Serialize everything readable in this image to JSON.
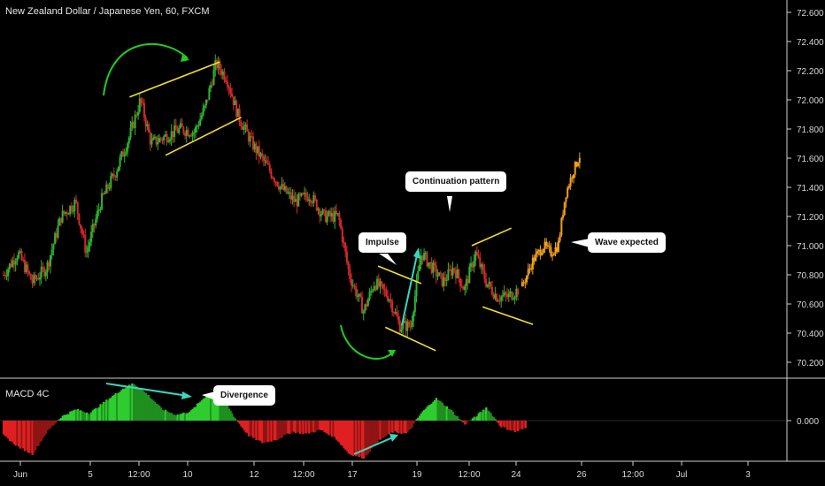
{
  "header": {
    "title": "New Zealand Dollar / Japanese Yen, 60, FXCM"
  },
  "indicator": {
    "title": "MACD 4C"
  },
  "callouts": {
    "continuation": "Continuation pattern",
    "impulse": "Impulse",
    "wave": "Wave expected",
    "divergence": "Divergence"
  },
  "colors": {
    "background": "#000000",
    "up_candle": "#2fb52f",
    "down_candle": "#d62a2a",
    "projection": "#f0a020",
    "trendline": "#f5e02a",
    "arc": "#22cc22",
    "divergence_arrow": "#3ad6c0",
    "impulse_arrow": "#3ad6c0",
    "macd_up": "#22aa22",
    "macd_down": "#cc1f1f"
  },
  "chart_data": [
    {
      "type": "candlestick",
      "title": "New Zealand Dollar / Japanese Yen, 60, FXCM",
      "ylim": [
        70.1,
        72.7
      ],
      "yticks": [
        "72.600",
        "72.400",
        "72.200",
        "72.000",
        "71.800",
        "71.600",
        "71.400",
        "71.200",
        "71.000",
        "70.800",
        "70.600",
        "70.400",
        "70.200"
      ],
      "xticks": [
        "Jun",
        "5",
        "12:00",
        "10",
        "12",
        "12:00",
        "17",
        "19",
        "12:00",
        "24",
        "26",
        "12:00",
        "Jul",
        "3"
      ],
      "price_path": [
        [
          0,
          70.8
        ],
        [
          4,
          70.95
        ],
        [
          8,
          70.75
        ],
        [
          12,
          70.85
        ],
        [
          16,
          71.2
        ],
        [
          20,
          71.3
        ],
        [
          23,
          70.95
        ],
        [
          27,
          71.3
        ],
        [
          31,
          71.5
        ],
        [
          35,
          71.75
        ],
        [
          38,
          72.0
        ],
        [
          41,
          71.7
        ],
        [
          45,
          71.75
        ],
        [
          49,
          71.8
        ],
        [
          53,
          71.78
        ],
        [
          56,
          71.95
        ],
        [
          59,
          72.25
        ],
        [
          62,
          72.15
        ],
        [
          65,
          71.9
        ],
        [
          69,
          71.7
        ],
        [
          73,
          71.55
        ],
        [
          77,
          71.4
        ],
        [
          81,
          71.3
        ],
        [
          85,
          71.35
        ],
        [
          89,
          71.2
        ],
        [
          93,
          71.2
        ],
        [
          96,
          70.8
        ],
        [
          100,
          70.55
        ],
        [
          103,
          70.75
        ],
        [
          107,
          70.65
        ],
        [
          110,
          70.45
        ],
        [
          113,
          70.45
        ],
        [
          116,
          70.95
        ],
        [
          119,
          70.85
        ],
        [
          122,
          70.75
        ],
        [
          125,
          70.85
        ],
        [
          128,
          70.7
        ],
        [
          131,
          70.95
        ],
        [
          134,
          70.75
        ],
        [
          137,
          70.65
        ],
        [
          140,
          70.65
        ],
        [
          143,
          70.7
        ]
      ],
      "projection_path": [
        [
          144,
          70.72
        ],
        [
          147,
          70.9
        ],
        [
          150,
          71.0
        ],
        [
          152,
          70.95
        ],
        [
          154,
          71.0
        ],
        [
          156,
          71.35
        ],
        [
          158,
          71.5
        ],
        [
          160,
          71.62
        ]
      ],
      "trendlines": [
        {
          "from": [
            35,
            72.02
          ],
          "to": [
            60,
            72.26
          ]
        },
        {
          "from": [
            45,
            71.62
          ],
          "to": [
            66,
            71.88
          ]
        },
        {
          "from": [
            104,
            70.86
          ],
          "to": [
            116,
            70.74
          ]
        },
        {
          "from": [
            106,
            70.44
          ],
          "to": [
            120,
            70.28
          ]
        },
        {
          "from": [
            130,
            71.0
          ],
          "to": [
            141,
            71.12
          ]
        },
        {
          "from": [
            133,
            70.58
          ],
          "to": [
            147,
            70.46
          ]
        }
      ],
      "annotations": [
        "Continuation pattern",
        "Impulse",
        "Wave expected"
      ]
    },
    {
      "type": "bar",
      "title": "MACD 4C",
      "yticks": [
        "0.000"
      ],
      "histogram_shape": [
        [
          0,
          -0.4
        ],
        [
          4,
          -0.7
        ],
        [
          8,
          -0.9
        ],
        [
          12,
          -0.3
        ],
        [
          16,
          0.1
        ],
        [
          20,
          0.3
        ],
        [
          24,
          0.2
        ],
        [
          28,
          0.5
        ],
        [
          33,
          0.85
        ],
        [
          36,
          1.0
        ],
        [
          40,
          0.7
        ],
        [
          44,
          0.3
        ],
        [
          48,
          0.15
        ],
        [
          52,
          0.25
        ],
        [
          56,
          0.65
        ],
        [
          60,
          0.75
        ],
        [
          64,
          0.1
        ],
        [
          68,
          -0.4
        ],
        [
          72,
          -0.6
        ],
        [
          76,
          -0.5
        ],
        [
          80,
          -0.3
        ],
        [
          84,
          -0.35
        ],
        [
          88,
          -0.25
        ],
        [
          92,
          -0.45
        ],
        [
          96,
          -0.9
        ],
        [
          100,
          -1.0
        ],
        [
          104,
          -0.55
        ],
        [
          108,
          -0.3
        ],
        [
          112,
          -0.35
        ],
        [
          116,
          0.2
        ],
        [
          120,
          0.6
        ],
        [
          124,
          0.3
        ],
        [
          128,
          -0.1
        ],
        [
          131,
          0.1
        ],
        [
          134,
          0.35
        ],
        [
          138,
          -0.15
        ],
        [
          142,
          -0.3
        ],
        [
          145,
          -0.2
        ]
      ],
      "annotations": [
        "Divergence"
      ]
    }
  ]
}
